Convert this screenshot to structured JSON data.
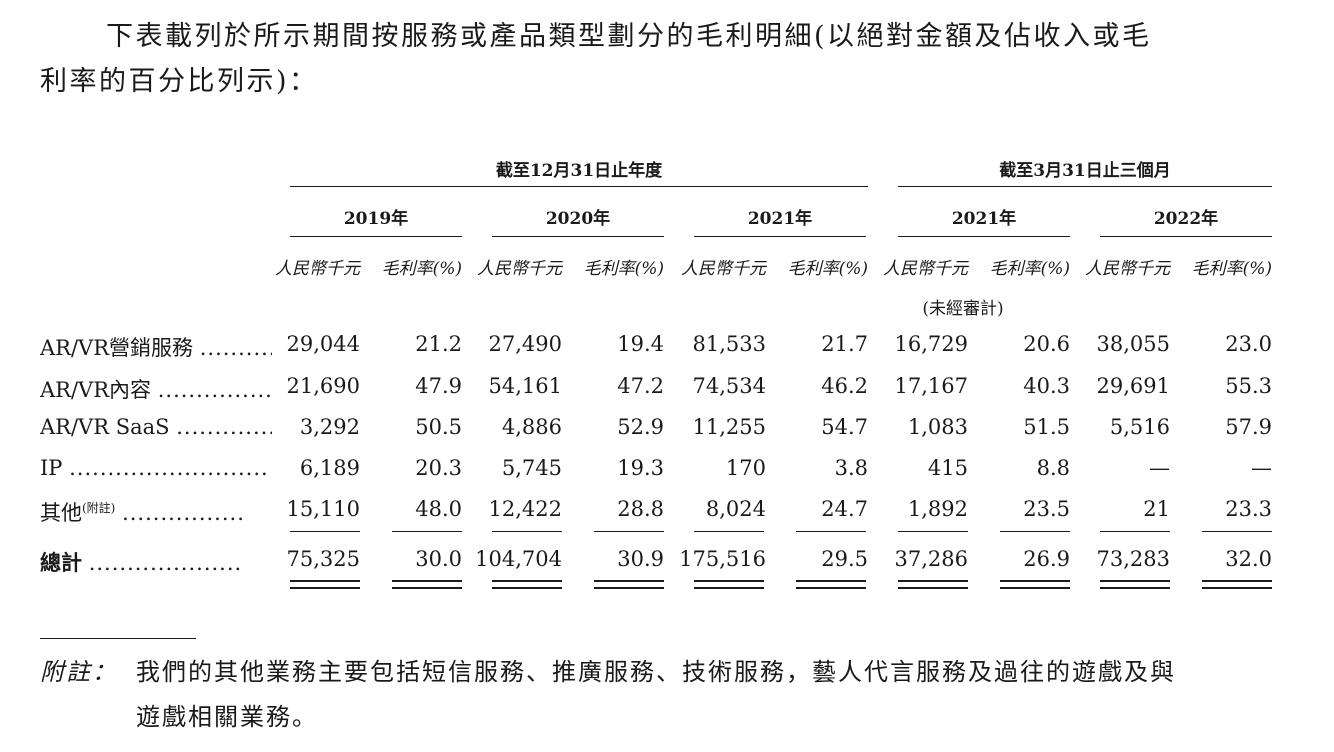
{
  "intro": {
    "line1": "下表載列於所示期間按服務或產品類型劃分的毛利明細(以絕對金額及佔收入或毛",
    "line2": "利率的百分比列示)："
  },
  "table": {
    "group_year": "截至12月31日止年度",
    "group_quarter": "截至3月31日止三個月",
    "periods": [
      "2019年",
      "2020年",
      "2021年",
      "2021年",
      "2022年"
    ],
    "unit_amount": "人民幣千元",
    "unit_margin": "毛利率(%)",
    "unaudited": "(未經審計)",
    "rows": [
      {
        "label": "AR/VR營銷服務",
        "dots": "..........",
        "sup": "",
        "values": [
          "29,044",
          "21.2",
          "27,490",
          "19.4",
          "81,533",
          "21.7",
          "16,729",
          "20.6",
          "38,055",
          "23.0"
        ]
      },
      {
        "label": "AR/VR內容",
        "dots": "................",
        "sup": "",
        "values": [
          "21,690",
          "47.9",
          "54,161",
          "47.2",
          "74,534",
          "46.2",
          "17,167",
          "40.3",
          "29,691",
          "55.3"
        ]
      },
      {
        "label": "AR/VR SaaS",
        "dots": "..............",
        "sup": "",
        "values": [
          "3,292",
          "50.5",
          "4,886",
          "52.9",
          "11,255",
          "54.7",
          "1,083",
          "51.5",
          "5,516",
          "57.9"
        ]
      },
      {
        "label": "IP",
        "dots": "..........................",
        "sup": "",
        "values": [
          "6,189",
          "20.3",
          "5,745",
          "19.3",
          "170",
          "3.8",
          "415",
          "8.8",
          "—",
          "—"
        ]
      },
      {
        "label": "其他",
        "dots": "................",
        "sup": "(附註)",
        "values": [
          "15,110",
          "48.0",
          "12,422",
          "28.8",
          "8,024",
          "24.7",
          "1,892",
          "23.5",
          "21",
          "23.3"
        ]
      }
    ],
    "total": {
      "label": "總計",
      "dots": "....................",
      "values": [
        "75,325",
        "30.0",
        "104,704",
        "30.9",
        "175,516",
        "29.5",
        "37,286",
        "26.9",
        "73,283",
        "32.0"
      ]
    }
  },
  "note": {
    "label": "附註：",
    "line1": "我們的其他業務主要包括短信服務、推廣服務、技術服務，藝人代言服務及過往的遊戲及與",
    "line2": "遊戲相關業務。"
  }
}
